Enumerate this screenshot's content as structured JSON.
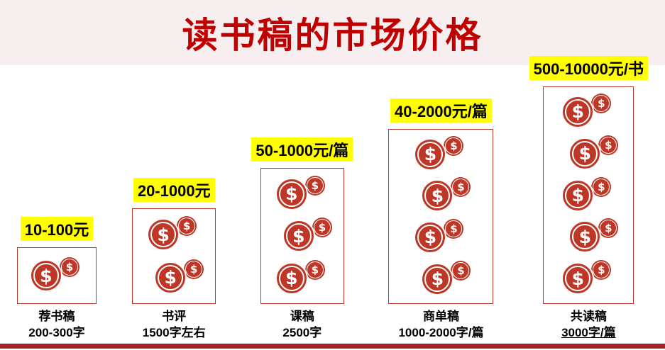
{
  "title": "读书稿的市场价格",
  "coin_symbol": "$",
  "colors": {
    "title": "#c00000",
    "header_bg": "#f7eef0",
    "coin": "#bd3626",
    "bar_border": "#bd3626",
    "highlight": "#ffff00",
    "footer_bar": "#a3232a"
  },
  "columns": [
    {
      "price": "10-100元",
      "name": "荐书稿",
      "detail": "200-300字",
      "coins": 1
    },
    {
      "price": "20-1000元",
      "name": "书评",
      "detail": "1500字左右",
      "coins": 2
    },
    {
      "price": "50-1000元/篇",
      "name": "课稿",
      "detail": "2500字",
      "coins": 3
    },
    {
      "price": "40-2000元/篇",
      "name": "商单稿",
      "detail": "1000-2000字/篇",
      "coins": 4
    },
    {
      "price": "500-10000元/书",
      "name": "共读稿",
      "detail": "3000字/篇",
      "coins": 5
    }
  ],
  "chart_data": {
    "type": "bar",
    "title": "读书稿的市场价格",
    "categories": [
      "荐书稿",
      "书评",
      "课稿",
      "商单稿",
      "共读稿"
    ],
    "category_details": [
      "200-300字",
      "1500字左右",
      "2500字",
      "1000-2000字/篇",
      "3000字/篇"
    ],
    "price_labels": [
      "10-100元",
      "20-1000元",
      "50-1000元/篇",
      "40-2000元/篇",
      "500-10000元/书"
    ],
    "price_ranges_yuan": [
      [
        10,
        100
      ],
      [
        20,
        1000
      ],
      [
        50,
        1000
      ],
      [
        40,
        2000
      ],
      [
        500,
        10000
      ]
    ],
    "units": [
      "元",
      "元",
      "元/篇",
      "元/篇",
      "元/书"
    ],
    "values_coin_icons": [
      1,
      2,
      3,
      4,
      5
    ],
    "xlabel": "",
    "ylabel": "",
    "legend": "none",
    "grid": "off",
    "bar_style": "outlined box filled with dollar-coin pictograms, height proportional to price tier"
  }
}
